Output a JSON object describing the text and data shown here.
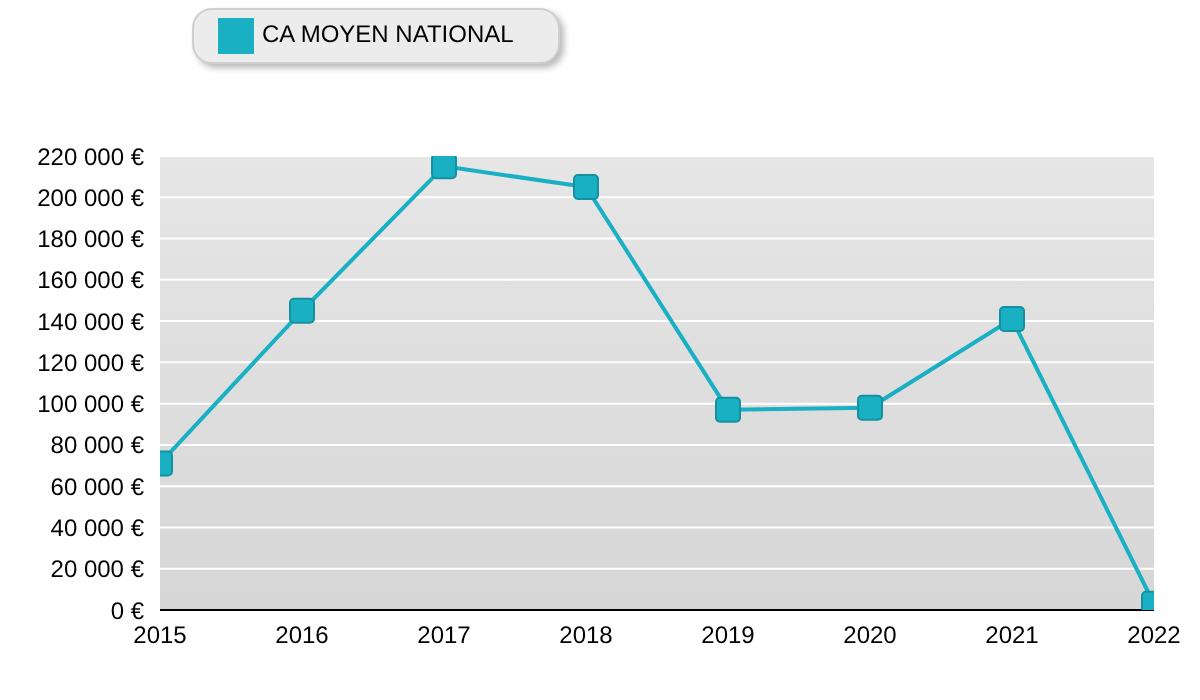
{
  "chart_data": {
    "type": "line",
    "x": [
      2015,
      2016,
      2017,
      2018,
      2019,
      2020,
      2021,
      2022
    ],
    "series": [
      {
        "name": "CA MOYEN NATIONAL",
        "color": "#1ab0c4",
        "values": [
          71000,
          145000,
          215000,
          205000,
          97000,
          98000,
          141000,
          3000
        ]
      }
    ],
    "xlim": [
      2015,
      2022
    ],
    "xticks": [
      2015,
      2016,
      2017,
      2018,
      2019,
      2020,
      2021,
      2022
    ],
    "ylim": [
      0,
      220000
    ],
    "yticks": [
      {
        "value": 0,
        "label": "0 €"
      },
      {
        "value": 20000,
        "label": "20 000 €"
      },
      {
        "value": 40000,
        "label": "40 000 €"
      },
      {
        "value": 60000,
        "label": "60 000 €"
      },
      {
        "value": 80000,
        "label": "80 000 €"
      },
      {
        "value": 100000,
        "label": "100 000 €"
      },
      {
        "value": 120000,
        "label": "120 000 €"
      },
      {
        "value": 140000,
        "label": "140 000 €"
      },
      {
        "value": 160000,
        "label": "160 000 €"
      },
      {
        "value": 180000,
        "label": "180 000 €"
      },
      {
        "value": 200000,
        "label": "200 000 €"
      },
      {
        "value": 220000,
        "label": "220 000 €"
      }
    ],
    "grid": "y",
    "legend": "top left",
    "marker": "square",
    "line_style": "solid"
  }
}
